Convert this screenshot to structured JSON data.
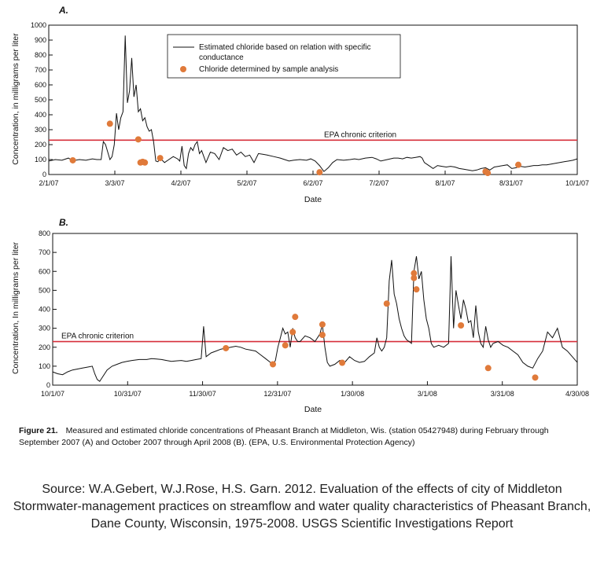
{
  "chart_data": [
    {
      "panel": "A.",
      "type": "line",
      "xlabel": "Date",
      "ylabel": "Concentration,  in milligrams per liter",
      "x_ticks": [
        "2/1/07",
        "3/3/07",
        "4/2/07",
        "5/2/07",
        "6/2/07",
        "7/2/07",
        "8/1/07",
        "8/31/07",
        "10/1/07"
      ],
      "xlim_days": [
        0,
        242
      ],
      "ylim": [
        0,
        1000
      ],
      "y_ticks": [
        0,
        100,
        200,
        300,
        400,
        500,
        600,
        700,
        800,
        900,
        1000
      ],
      "criterion": {
        "label": "EPA chronic criterion",
        "value": 230,
        "color": "#d62f3a"
      },
      "legend": {
        "placement": "top-center",
        "line_label_1": "Estimated chloride based on relation with specific",
        "line_label_2": "conductance",
        "point_label": "Chloride determined by sample analysis"
      },
      "series_line": [
        [
          0,
          90
        ],
        [
          3,
          100
        ],
        [
          6,
          95
        ],
        [
          9,
          110
        ],
        [
          11,
          92
        ],
        [
          14,
          100
        ],
        [
          17,
          95
        ],
        [
          20,
          105
        ],
        [
          22,
          100
        ],
        [
          24,
          100
        ],
        [
          25,
          220
        ],
        [
          26,
          200
        ],
        [
          27,
          150
        ],
        [
          28,
          100
        ],
        [
          29,
          120
        ],
        [
          30,
          200
        ],
        [
          31,
          410
        ],
        [
          32,
          300
        ],
        [
          33,
          380
        ],
        [
          34,
          420
        ],
        [
          35,
          930
        ],
        [
          36,
          480
        ],
        [
          37,
          560
        ],
        [
          38,
          780
        ],
        [
          39,
          520
        ],
        [
          40,
          600
        ],
        [
          41,
          420
        ],
        [
          42,
          440
        ],
        [
          43,
          360
        ],
        [
          44,
          380
        ],
        [
          45,
          320
        ],
        [
          46,
          290
        ],
        [
          47,
          300
        ],
        [
          48,
          220
        ],
        [
          49,
          90
        ],
        [
          50,
          85
        ],
        [
          51,
          110
        ],
        [
          53,
          80
        ],
        [
          55,
          100
        ],
        [
          57,
          120
        ],
        [
          59,
          105
        ],
        [
          60,
          90
        ],
        [
          61,
          190
        ],
        [
          62,
          60
        ],
        [
          63,
          40
        ],
        [
          64,
          140
        ],
        [
          65,
          180
        ],
        [
          66,
          160
        ],
        [
          67,
          200
        ],
        [
          68,
          220
        ],
        [
          69,
          140
        ],
        [
          70,
          160
        ],
        [
          72,
          80
        ],
        [
          74,
          150
        ],
        [
          76,
          140
        ],
        [
          78,
          100
        ],
        [
          80,
          180
        ],
        [
          82,
          160
        ],
        [
          84,
          170
        ],
        [
          86,
          130
        ],
        [
          88,
          150
        ],
        [
          90,
          120
        ],
        [
          92,
          130
        ],
        [
          94,
          80
        ],
        [
          96,
          140
        ],
        [
          98,
          135
        ],
        [
          100,
          130
        ],
        [
          103,
          120
        ],
        [
          106,
          110
        ],
        [
          108,
          100
        ],
        [
          110,
          90
        ],
        [
          112,
          95
        ],
        [
          115,
          100
        ],
        [
          118,
          95
        ],
        [
          120,
          105
        ],
        [
          122,
          90
        ],
        [
          124,
          60
        ],
        [
          126,
          20
        ],
        [
          128,
          45
        ],
        [
          130,
          80
        ],
        [
          132,
          100
        ],
        [
          135,
          95
        ],
        [
          138,
          100
        ],
        [
          140,
          105
        ],
        [
          142,
          100
        ],
        [
          145,
          110
        ],
        [
          148,
          115
        ],
        [
          150,
          105
        ],
        [
          152,
          90
        ],
        [
          155,
          100
        ],
        [
          158,
          110
        ],
        [
          160,
          110
        ],
        [
          162,
          105
        ],
        [
          164,
          115
        ],
        [
          166,
          110
        ],
        [
          168,
          115
        ],
        [
          170,
          120
        ],
        [
          171,
          110
        ],
        [
          172,
          80
        ],
        [
          174,
          60
        ],
        [
          176,
          40
        ],
        [
          178,
          60
        ],
        [
          180,
          55
        ],
        [
          182,
          50
        ],
        [
          184,
          55
        ],
        [
          186,
          50
        ],
        [
          188,
          40
        ],
        [
          190,
          35
        ],
        [
          192,
          30
        ],
        [
          194,
          25
        ],
        [
          196,
          30
        ],
        [
          198,
          40
        ],
        [
          200,
          45
        ],
        [
          202,
          30
        ],
        [
          204,
          50
        ],
        [
          206,
          55
        ],
        [
          208,
          60
        ],
        [
          210,
          65
        ],
        [
          212,
          40
        ],
        [
          214,
          45
        ],
        [
          216,
          55
        ],
        [
          218,
          50
        ],
        [
          220,
          55
        ],
        [
          222,
          60
        ],
        [
          224,
          60
        ],
        [
          226,
          65
        ],
        [
          228,
          65
        ],
        [
          230,
          70
        ],
        [
          232,
          75
        ],
        [
          234,
          80
        ],
        [
          236,
          85
        ],
        [
          238,
          90
        ],
        [
          240,
          95
        ],
        [
          242,
          105
        ]
      ],
      "series_points": [
        [
          11,
          95
        ],
        [
          28,
          340
        ],
        [
          41,
          235
        ],
        [
          42,
          80
        ],
        [
          43,
          85
        ],
        [
          44,
          80
        ],
        [
          51,
          110
        ],
        [
          124,
          15
        ],
        [
          200,
          20
        ],
        [
          201,
          10
        ],
        [
          215,
          65
        ]
      ]
    },
    {
      "panel": "B.",
      "type": "line",
      "xlabel": "Date",
      "ylabel": "Concentration,  In milligrams per liter",
      "x_ticks": [
        "10/1/07",
        "10/31/07",
        "11/30/07",
        "12/31/07",
        "1/30/08",
        "3/1/08",
        "3/31/08",
        "4/30/08"
      ],
      "xlim_days": [
        0,
        212
      ],
      "ylim": [
        0,
        800
      ],
      "y_ticks": [
        0,
        100,
        200,
        300,
        400,
        500,
        600,
        700,
        800
      ],
      "criterion": {
        "label": "EPA chronic criterion",
        "value": 230,
        "color": "#d62f3a"
      },
      "series_line": [
        [
          0,
          70
        ],
        [
          2,
          60
        ],
        [
          4,
          55
        ],
        [
          6,
          70
        ],
        [
          8,
          80
        ],
        [
          10,
          85
        ],
        [
          12,
          90
        ],
        [
          14,
          95
        ],
        [
          16,
          100
        ],
        [
          17,
          60
        ],
        [
          18,
          30
        ],
        [
          19,
          20
        ],
        [
          20,
          40
        ],
        [
          22,
          80
        ],
        [
          24,
          100
        ],
        [
          26,
          110
        ],
        [
          28,
          120
        ],
        [
          30,
          125
        ],
        [
          32,
          130
        ],
        [
          35,
          135
        ],
        [
          38,
          135
        ],
        [
          40,
          140
        ],
        [
          42,
          138
        ],
        [
          44,
          135
        ],
        [
          46,
          130
        ],
        [
          48,
          125
        ],
        [
          50,
          128
        ],
        [
          52,
          130
        ],
        [
          54,
          125
        ],
        [
          56,
          130
        ],
        [
          58,
          135
        ],
        [
          60,
          140
        ],
        [
          61,
          310
        ],
        [
          62,
          150
        ],
        [
          64,
          170
        ],
        [
          66,
          180
        ],
        [
          68,
          190
        ],
        [
          70,
          195
        ],
        [
          72,
          200
        ],
        [
          74,
          205
        ],
        [
          76,
          200
        ],
        [
          78,
          190
        ],
        [
          80,
          185
        ],
        [
          82,
          180
        ],
        [
          84,
          160
        ],
        [
          86,
          140
        ],
        [
          88,
          120
        ],
        [
          89,
          110
        ],
        [
          90,
          130
        ],
        [
          91,
          200
        ],
        [
          92,
          250
        ],
        [
          93,
          300
        ],
        [
          94,
          270
        ],
        [
          95,
          280
        ],
        [
          96,
          200
        ],
        [
          97,
          300
        ],
        [
          98,
          250
        ],
        [
          99,
          230
        ],
        [
          100,
          230
        ],
        [
          102,
          260
        ],
        [
          104,
          250
        ],
        [
          106,
          230
        ],
        [
          108,
          270
        ],
        [
          109,
          320
        ],
        [
          110,
          200
        ],
        [
          111,
          120
        ],
        [
          112,
          100
        ],
        [
          114,
          110
        ],
        [
          116,
          130
        ],
        [
          118,
          120
        ],
        [
          120,
          150
        ],
        [
          122,
          130
        ],
        [
          124,
          120
        ],
        [
          126,
          125
        ],
        [
          128,
          150
        ],
        [
          130,
          170
        ],
        [
          131,
          250
        ],
        [
          132,
          200
        ],
        [
          133,
          180
        ],
        [
          134,
          200
        ],
        [
          135,
          250
        ],
        [
          136,
          550
        ],
        [
          137,
          660
        ],
        [
          138,
          480
        ],
        [
          139,
          430
        ],
        [
          140,
          350
        ],
        [
          141,
          300
        ],
        [
          142,
          260
        ],
        [
          143,
          240
        ],
        [
          144,
          230
        ],
        [
          145,
          220
        ],
        [
          146,
          600
        ],
        [
          147,
          680
        ],
        [
          148,
          560
        ],
        [
          149,
          600
        ],
        [
          150,
          450
        ],
        [
          151,
          350
        ],
        [
          152,
          300
        ],
        [
          153,
          220
        ],
        [
          154,
          200
        ],
        [
          156,
          210
        ],
        [
          158,
          200
        ],
        [
          160,
          220
        ],
        [
          161,
          680
        ],
        [
          162,
          300
        ],
        [
          163,
          500
        ],
        [
          164,
          420
        ],
        [
          165,
          350
        ],
        [
          166,
          450
        ],
        [
          167,
          400
        ],
        [
          168,
          330
        ],
        [
          169,
          340
        ],
        [
          170,
          250
        ],
        [
          171,
          420
        ],
        [
          172,
          280
        ],
        [
          173,
          220
        ],
        [
          174,
          200
        ],
        [
          175,
          310
        ],
        [
          176,
          240
        ],
        [
          177,
          200
        ],
        [
          178,
          220
        ],
        [
          180,
          230
        ],
        [
          182,
          210
        ],
        [
          184,
          200
        ],
        [
          186,
          180
        ],
        [
          188,
          160
        ],
        [
          190,
          120
        ],
        [
          192,
          100
        ],
        [
          194,
          90
        ],
        [
          196,
          140
        ],
        [
          198,
          180
        ],
        [
          200,
          280
        ],
        [
          202,
          250
        ],
        [
          204,
          300
        ],
        [
          206,
          200
        ],
        [
          208,
          180
        ],
        [
          210,
          150
        ],
        [
          212,
          120
        ]
      ],
      "series_points": [
        [
          70,
          195
        ],
        [
          89,
          110
        ],
        [
          94,
          210
        ],
        [
          97,
          280
        ],
        [
          98,
          360
        ],
        [
          109,
          320
        ],
        [
          109,
          265
        ],
        [
          117,
          118
        ],
        [
          135,
          430
        ],
        [
          146,
          590
        ],
        [
          146,
          565
        ],
        [
          147,
          505
        ],
        [
          165,
          315
        ],
        [
          176,
          90
        ],
        [
          195,
          40
        ]
      ]
    }
  ],
  "caption": {
    "label": "Figure 21.",
    "text": "Measured and estimated chloride concentrations of Pheasant Branch at Middleton, Wis. (station 05427948) during February through September 2007 (A) and October 2007 through April 2008 (B). (EPA, U.S. Environmental Protection Agency)"
  },
  "source": "Source: W.A.Gebert, W.J.Rose, H.S. Garn. 2012. Evaluation of the effects of city of Middleton Stormwater-management practices on streamflow and water quality characteristics of Pheasant Branch, Dane County, Wisconsin, 1975-2008. USGS Scientific Investigations Report",
  "colors": {
    "line": "#111111",
    "point": "#e07a3a",
    "criterion": "#d62f3a"
  }
}
